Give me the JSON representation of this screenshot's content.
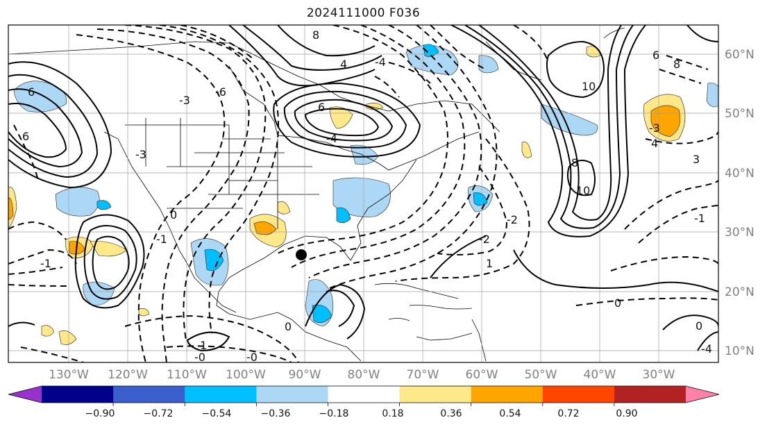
{
  "title": "2024111000 F036",
  "map": {
    "lat_labels": [
      "60°N",
      "50°N",
      "40°N",
      "30°N",
      "20°N",
      "10°N"
    ],
    "lon_labels": [
      "130°W",
      "120°W",
      "110°W",
      "100°W",
      "90°W",
      "80°W",
      "70°W",
      "60°W",
      "50°W",
      "40°W",
      "30°W"
    ],
    "contour_labels": [
      "6",
      "8",
      "4",
      "6",
      "8",
      "10",
      "8",
      "10",
      "6",
      "3",
      "4",
      "0",
      "-3",
      "-4",
      "-6",
      "6",
      "-4",
      "-3",
      "1",
      "-1",
      "-2",
      "-1",
      "-2",
      "0",
      "-1",
      "-0",
      "-0",
      "0",
      "-3",
      "-4",
      "1",
      "0"
    ]
  },
  "colorbar": {
    "ticks": [
      "−0.90",
      "−0.72",
      "−0.54",
      "−0.36",
      "−0.18",
      "0.18",
      "0.36",
      "0.54",
      "0.72",
      "0.90"
    ],
    "colors": [
      "#9932cc",
      "#00008b",
      "#3a5fcd",
      "#00bfff",
      "#add8f5",
      "#ffffff",
      "#ffe88a",
      "#ffa500",
      "#ff4500",
      "#b22222",
      "#ff82ab"
    ]
  }
}
